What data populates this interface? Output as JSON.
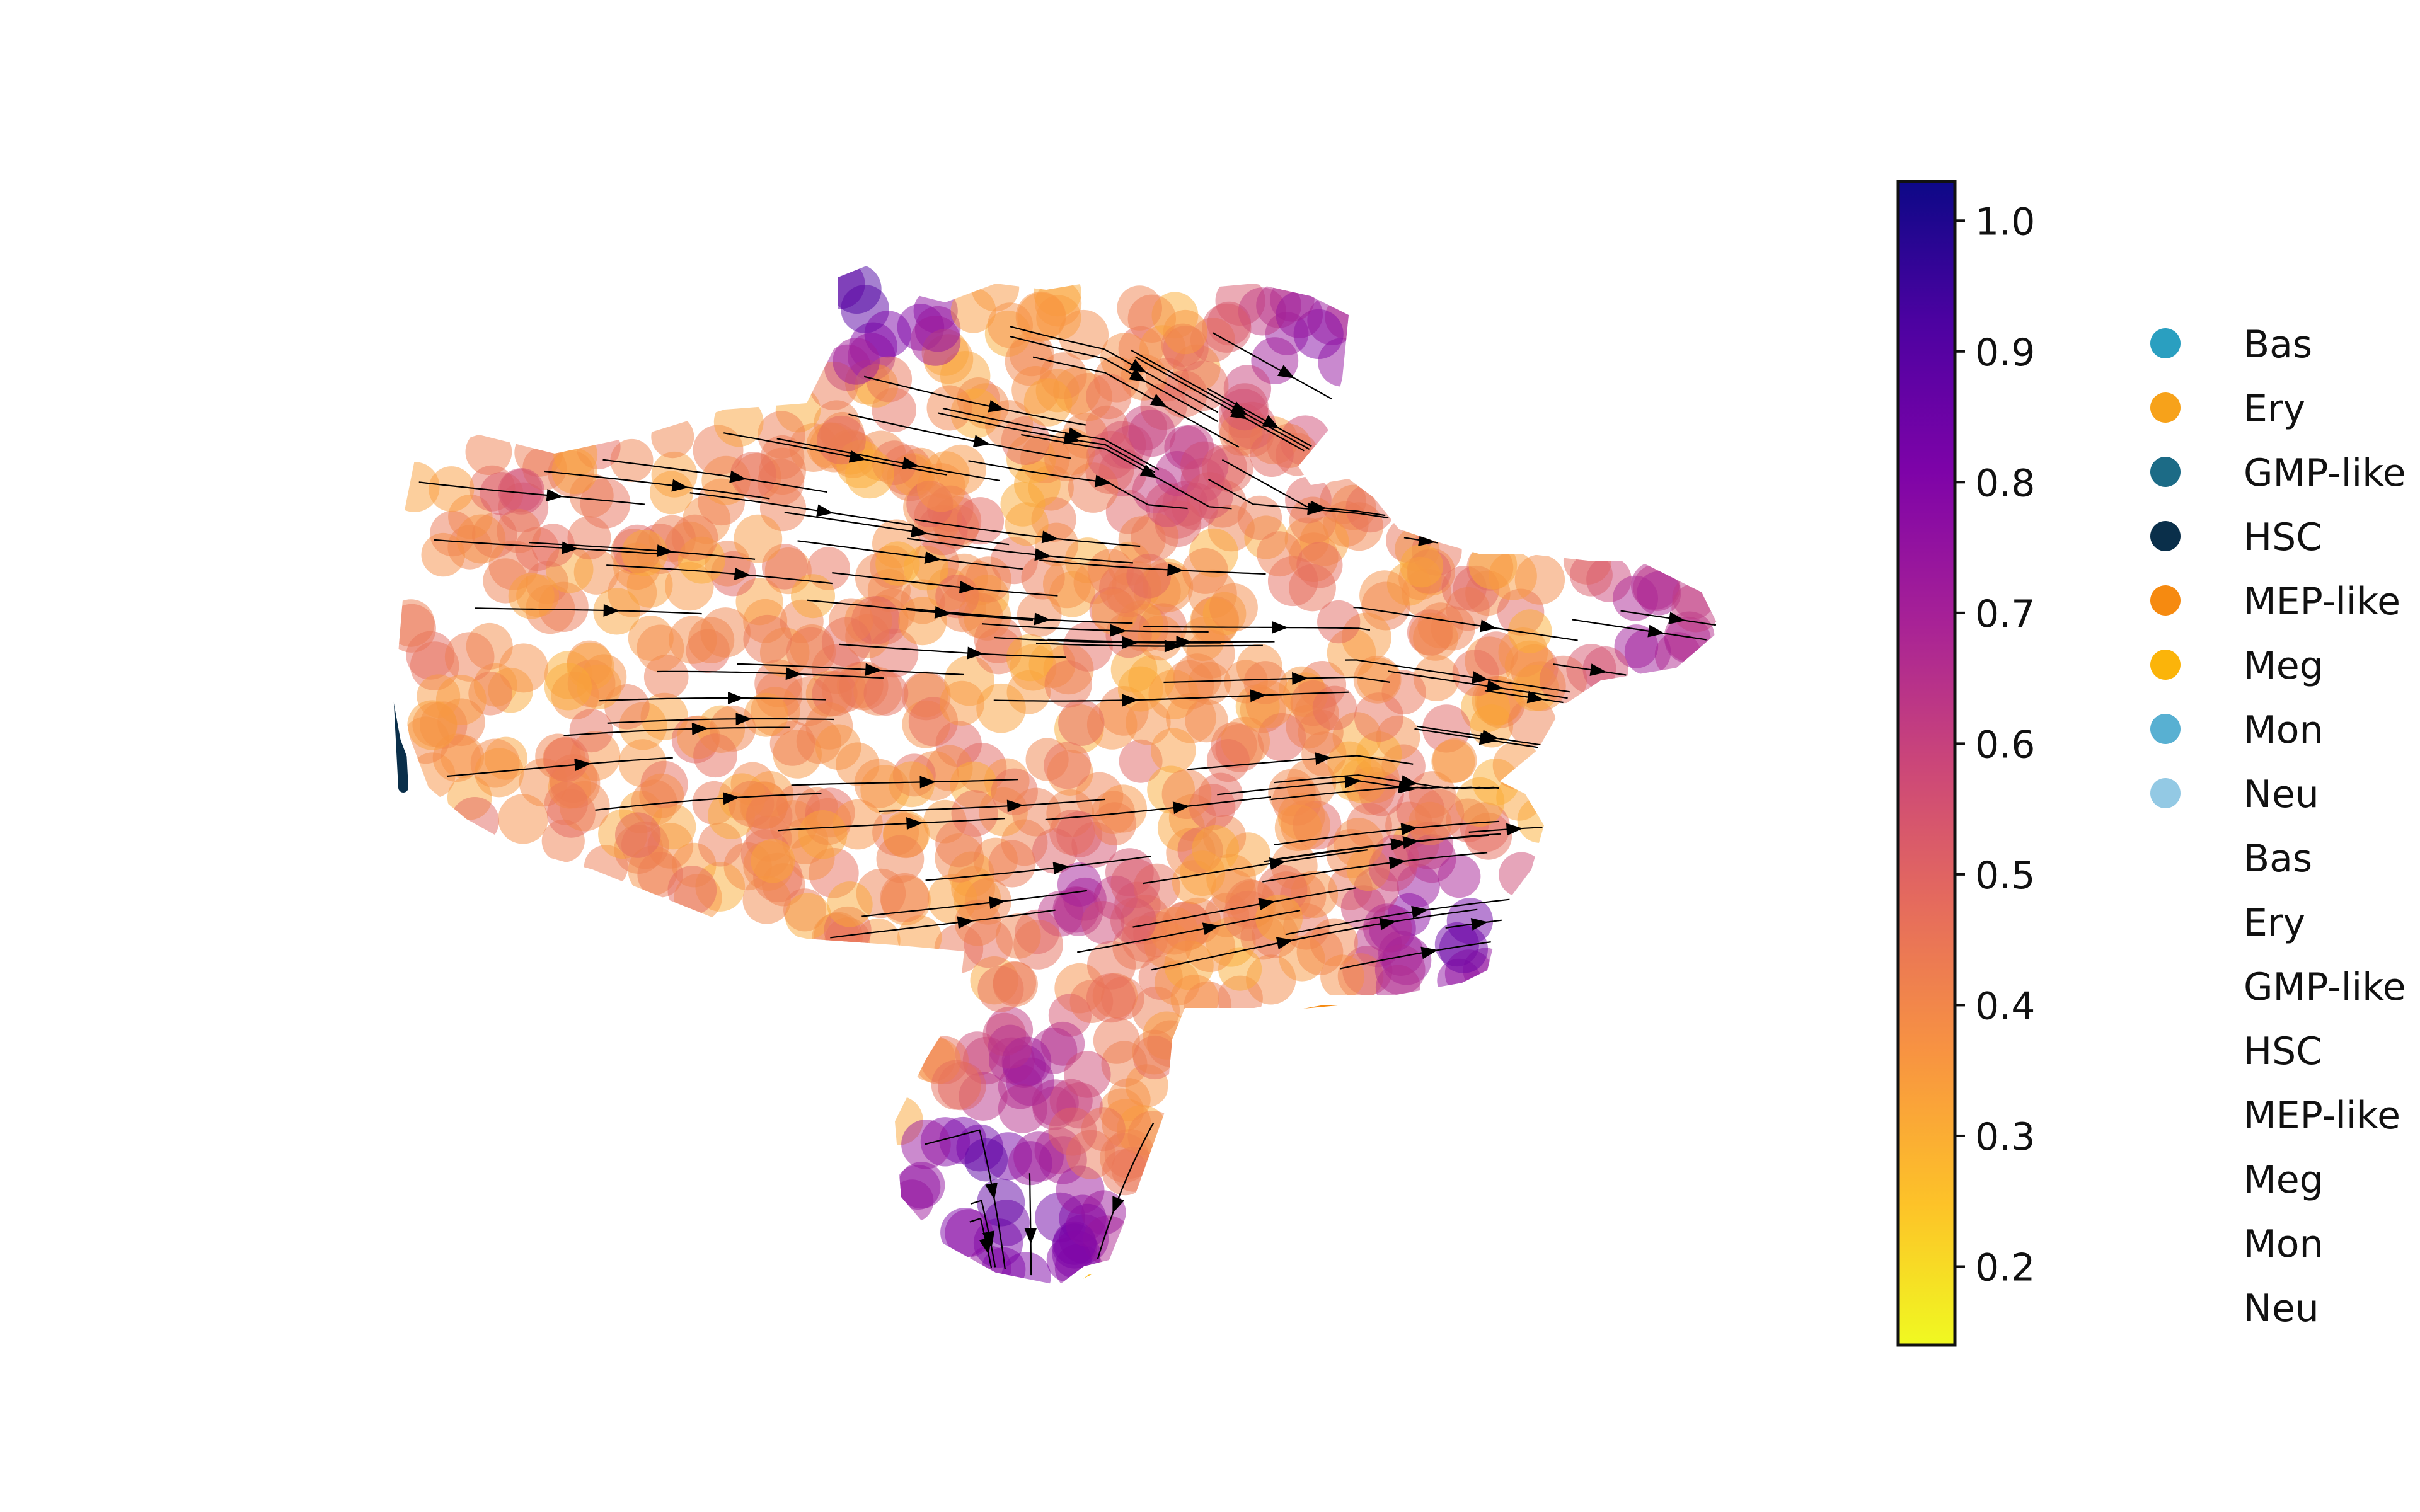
{
  "chart_data": {
    "type": "scatter",
    "title": "",
    "xlabel": "",
    "ylabel": "",
    "grid": false,
    "axes_visible": false,
    "colormap": "plasma_r",
    "colorbar": {
      "ticks": [
        1.0,
        0.9,
        0.8,
        0.7,
        0.6,
        0.5,
        0.4,
        0.3,
        0.2
      ],
      "tick_labels": [
        "1.0",
        "0.9",
        "0.8",
        "0.7",
        "0.6",
        "0.5",
        "0.4",
        "0.3",
        "0.2"
      ],
      "range": [
        0.14,
        1.03
      ]
    },
    "legend": {
      "placement": "right",
      "marker_entries": [
        {
          "label": "Bas",
          "color": "#2a9fc0"
        },
        {
          "label": "Ery",
          "color": "#f7a21a"
        },
        {
          "label": "GMP-like",
          "color": "#1c6b86"
        },
        {
          "label": "HSC",
          "color": "#0a2f4a"
        },
        {
          "label": "MEP-like",
          "color": "#f68a10"
        },
        {
          "label": "Meg",
          "color": "#fbb40a"
        },
        {
          "label": "Mon",
          "color": "#58b0d2"
        },
        {
          "label": "Neu",
          "color": "#93c9e4"
        }
      ],
      "text_entries": [
        "Bas",
        "Ery",
        "GMP-like",
        "HSC",
        "MEP-like",
        "Meg",
        "Mon",
        "Neu"
      ]
    },
    "regions": [
      {
        "label": "HSC",
        "color": "#0a2f4a"
      },
      {
        "label": "Neu",
        "color": "#93c9e4"
      },
      {
        "label": "Bas",
        "color": "#2a9fc0"
      },
      {
        "label": "MEP-like",
        "color": "#f68a10"
      },
      {
        "label": "Meg",
        "color": "#fbb40a"
      }
    ],
    "overlay": "velocity streamlines with arrowheads"
  }
}
